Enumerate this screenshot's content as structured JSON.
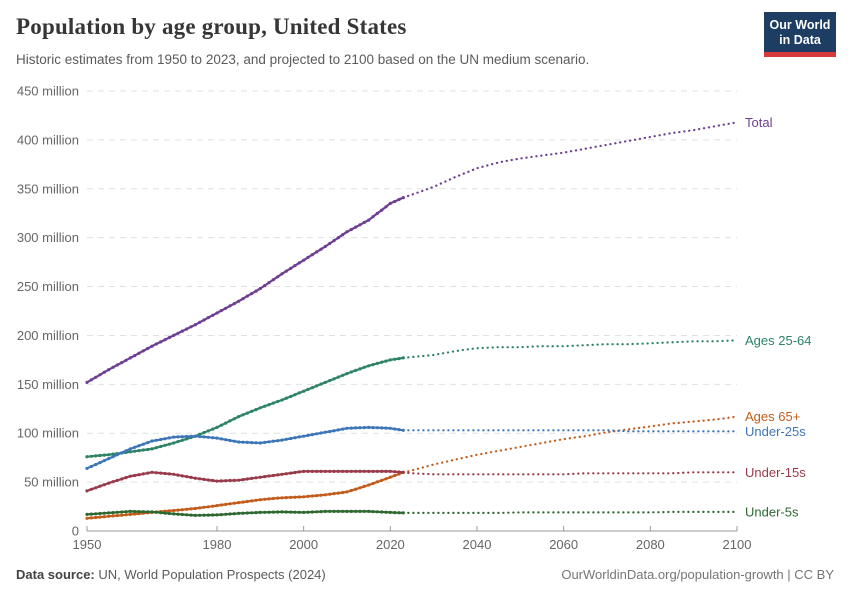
{
  "header": {
    "title": "Population by age group, United States",
    "subtitle": "Historic estimates from 1950 to 2023, and projected to 2100 based on the UN medium scenario.",
    "logo": {
      "line1": "Our World",
      "line2": "in Data",
      "bg_color": "#1d3d63",
      "bar_color": "#d7383a"
    }
  },
  "footer": {
    "source_bold": "Data source:",
    "source_rest": " UN, World Population Prospects (2024)",
    "link": "OurWorldinData.org/population-growth | CC BY"
  },
  "chart_data": {
    "type": "line",
    "title": "Population by age group, United States",
    "xlabel": "",
    "ylabel": "",
    "unit": "million",
    "grid": true,
    "legend_position": "right-of-line-ends",
    "xlim": [
      1950,
      2100
    ],
    "ylim": [
      0,
      450
    ],
    "x_ticks": [
      1950,
      1980,
      2000,
      2020,
      2040,
      2060,
      2080,
      2100
    ],
    "y_ticks": [
      {
        "value": 0,
        "label": "0"
      },
      {
        "value": 50,
        "label": "50 million"
      },
      {
        "value": 100,
        "label": "100 million"
      },
      {
        "value": 150,
        "label": "150 million"
      },
      {
        "value": 200,
        "label": "200 million"
      },
      {
        "value": 250,
        "label": "250 million"
      },
      {
        "value": 300,
        "label": "300 million"
      },
      {
        "value": 350,
        "label": "350 million"
      },
      {
        "value": 400,
        "label": "400 million"
      },
      {
        "value": 450,
        "label": "450 million"
      }
    ],
    "projection_start_year": 2023,
    "historic_years": [
      1950,
      1955,
      1960,
      1965,
      1970,
      1975,
      1980,
      1985,
      1990,
      1995,
      2000,
      2005,
      2010,
      2015,
      2020,
      2023
    ],
    "projection_years": [
      2023,
      2025,
      2030,
      2035,
      2040,
      2045,
      2050,
      2055,
      2060,
      2065,
      2070,
      2075,
      2080,
      2085,
      2090,
      2095,
      2100
    ],
    "series": [
      {
        "name": "Total",
        "color": "#6d3e91",
        "historic": [
          152,
          165,
          177,
          189,
          200,
          211,
          223,
          235,
          248,
          263,
          277,
          291,
          306,
          318,
          335,
          341
        ],
        "projection": [
          341,
          344,
          352,
          362,
          371,
          377,
          381,
          384,
          387,
          391,
          395,
          399,
          403,
          407,
          410,
          414,
          418
        ]
      },
      {
        "name": "Ages 25-64",
        "color": "#2c8465",
        "historic": [
          76,
          78,
          81,
          84,
          90,
          97,
          106,
          117,
          126,
          134,
          143,
          152,
          161,
          169,
          175,
          177
        ],
        "projection": [
          177,
          178,
          180,
          184,
          187,
          188,
          188,
          189,
          189,
          190,
          191,
          191,
          192,
          193,
          194,
          194,
          195
        ]
      },
      {
        "name": "Ages 65+",
        "color": "#c35c1a",
        "historic": [
          13,
          15,
          17,
          19,
          21,
          23,
          26,
          29,
          32,
          34,
          35,
          37,
          40,
          47,
          55,
          60
        ],
        "projection": [
          60,
          62,
          68,
          73,
          78,
          82,
          86,
          90,
          94,
          97,
          101,
          104,
          107,
          110,
          112,
          114,
          117
        ]
      },
      {
        "name": "Under-25s",
        "color": "#3d76b8",
        "historic": [
          64,
          74,
          84,
          92,
          96,
          97,
          95,
          91,
          90,
          93,
          97,
          101,
          105,
          106,
          105,
          103
        ],
        "projection": [
          103,
          103,
          103,
          103,
          103,
          103,
          103,
          103,
          103,
          103,
          103,
          102,
          102,
          102,
          102,
          102,
          102
        ]
      },
      {
        "name": "Under-15s",
        "color": "#983a49",
        "historic": [
          41,
          49,
          56,
          60,
          58,
          54,
          51,
          52,
          55,
          58,
          61,
          61,
          61,
          61,
          61,
          60
        ],
        "projection": [
          60,
          59,
          58,
          58,
          58,
          58,
          58,
          58,
          58,
          59,
          59,
          59,
          59,
          59,
          60,
          60,
          60
        ]
      },
      {
        "name": "Under-5s",
        "color": "#2e6831",
        "historic": [
          17,
          18.5,
          20,
          19.5,
          17.5,
          16,
          16.5,
          18,
          19,
          19.5,
          19,
          20,
          20,
          20,
          19,
          18.5
        ],
        "projection": [
          18.5,
          18.5,
          18.5,
          18.5,
          18.5,
          18.5,
          19,
          19,
          19,
          19,
          19,
          19,
          19,
          19.5,
          19.5,
          19.5,
          19.5
        ]
      }
    ]
  }
}
